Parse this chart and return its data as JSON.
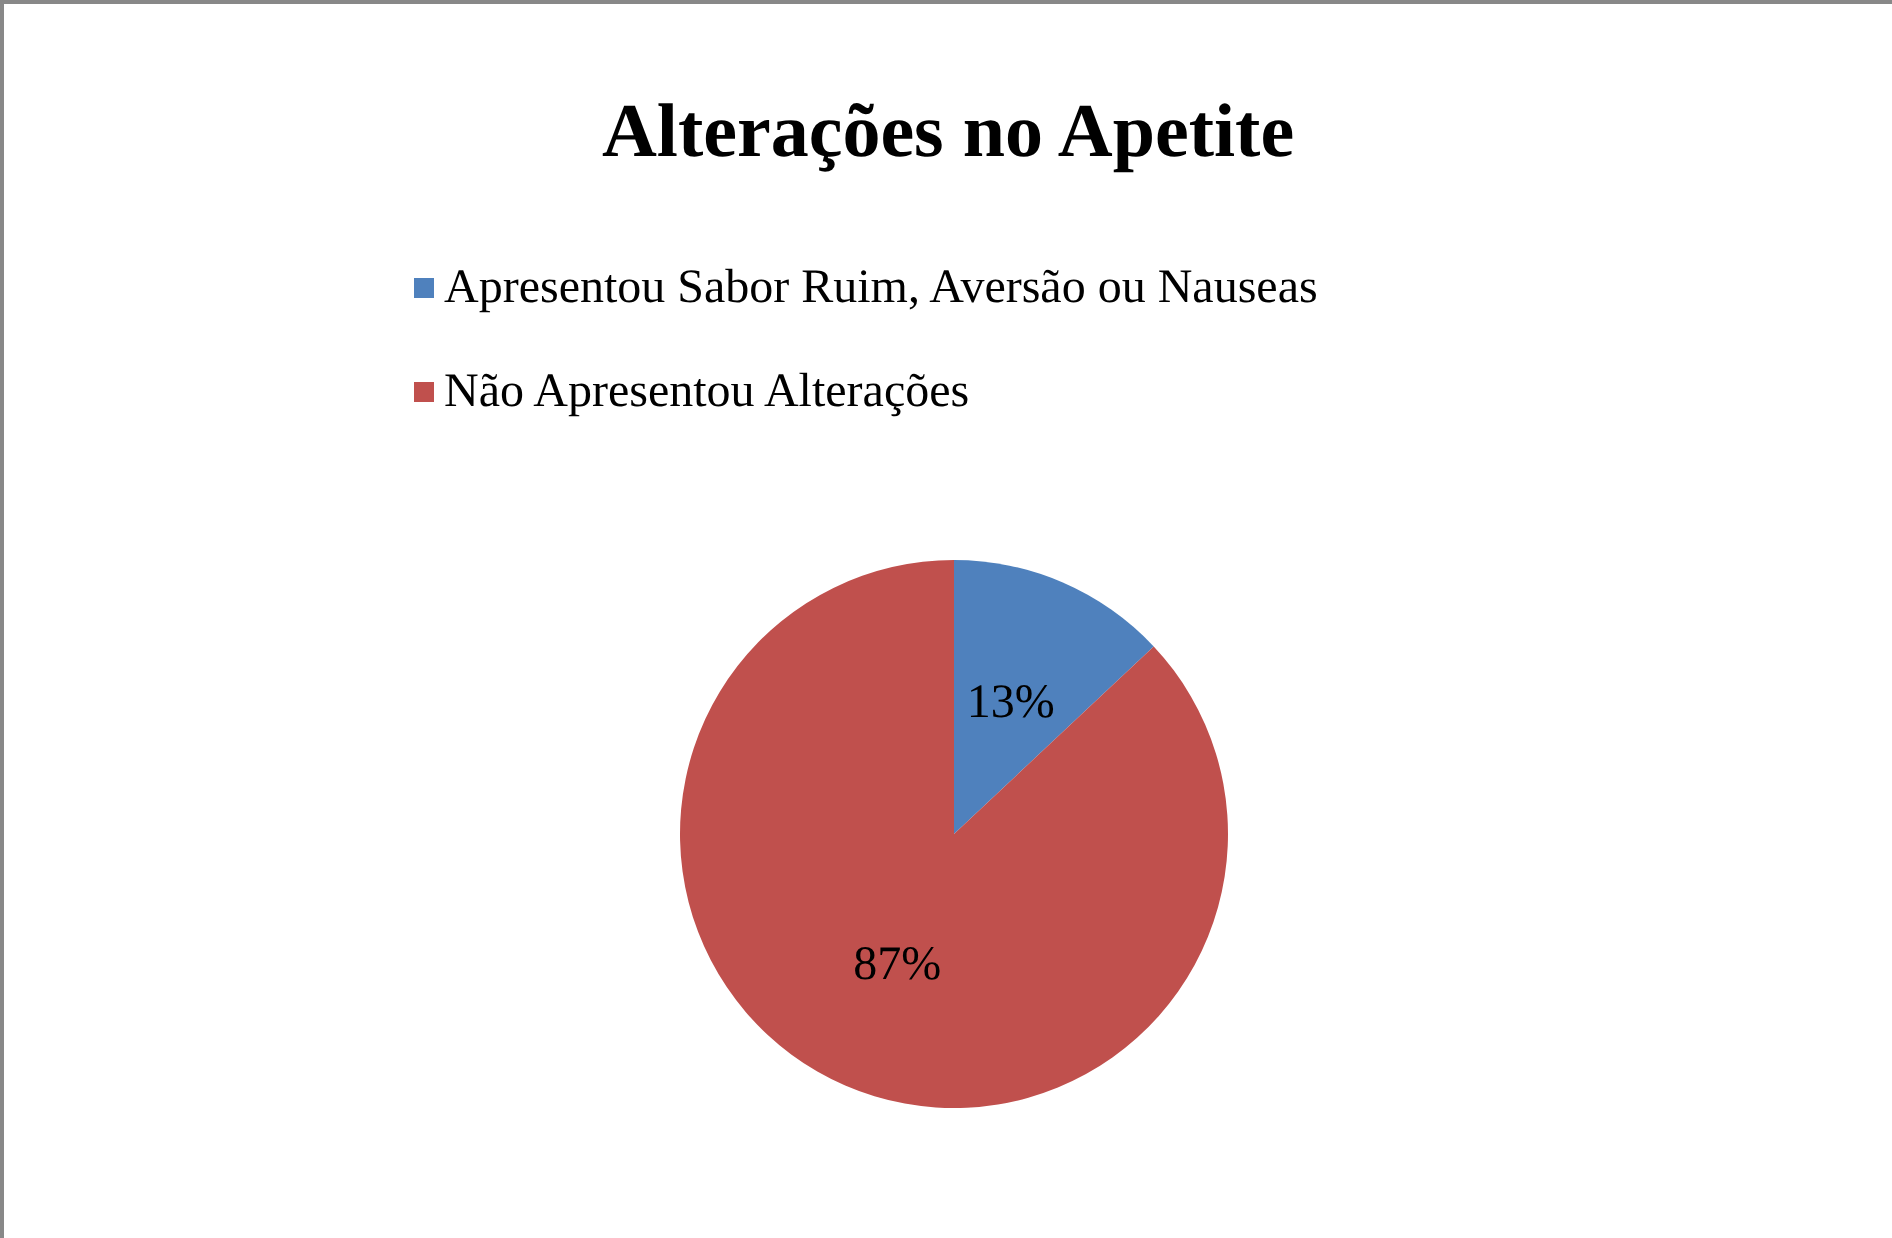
{
  "chart_data": {
    "type": "pie",
    "title": "Alterações no Apetite",
    "categories": [
      "Apresentou Sabor Ruim, Aversão ou Nauseas",
      "Não Apresentou Alterações"
    ],
    "values": [
      13,
      87
    ],
    "colors": [
      "#4f81bd",
      "#c0504d"
    ],
    "value_labels": [
      "13%",
      "87%"
    ],
    "legend": "top"
  }
}
